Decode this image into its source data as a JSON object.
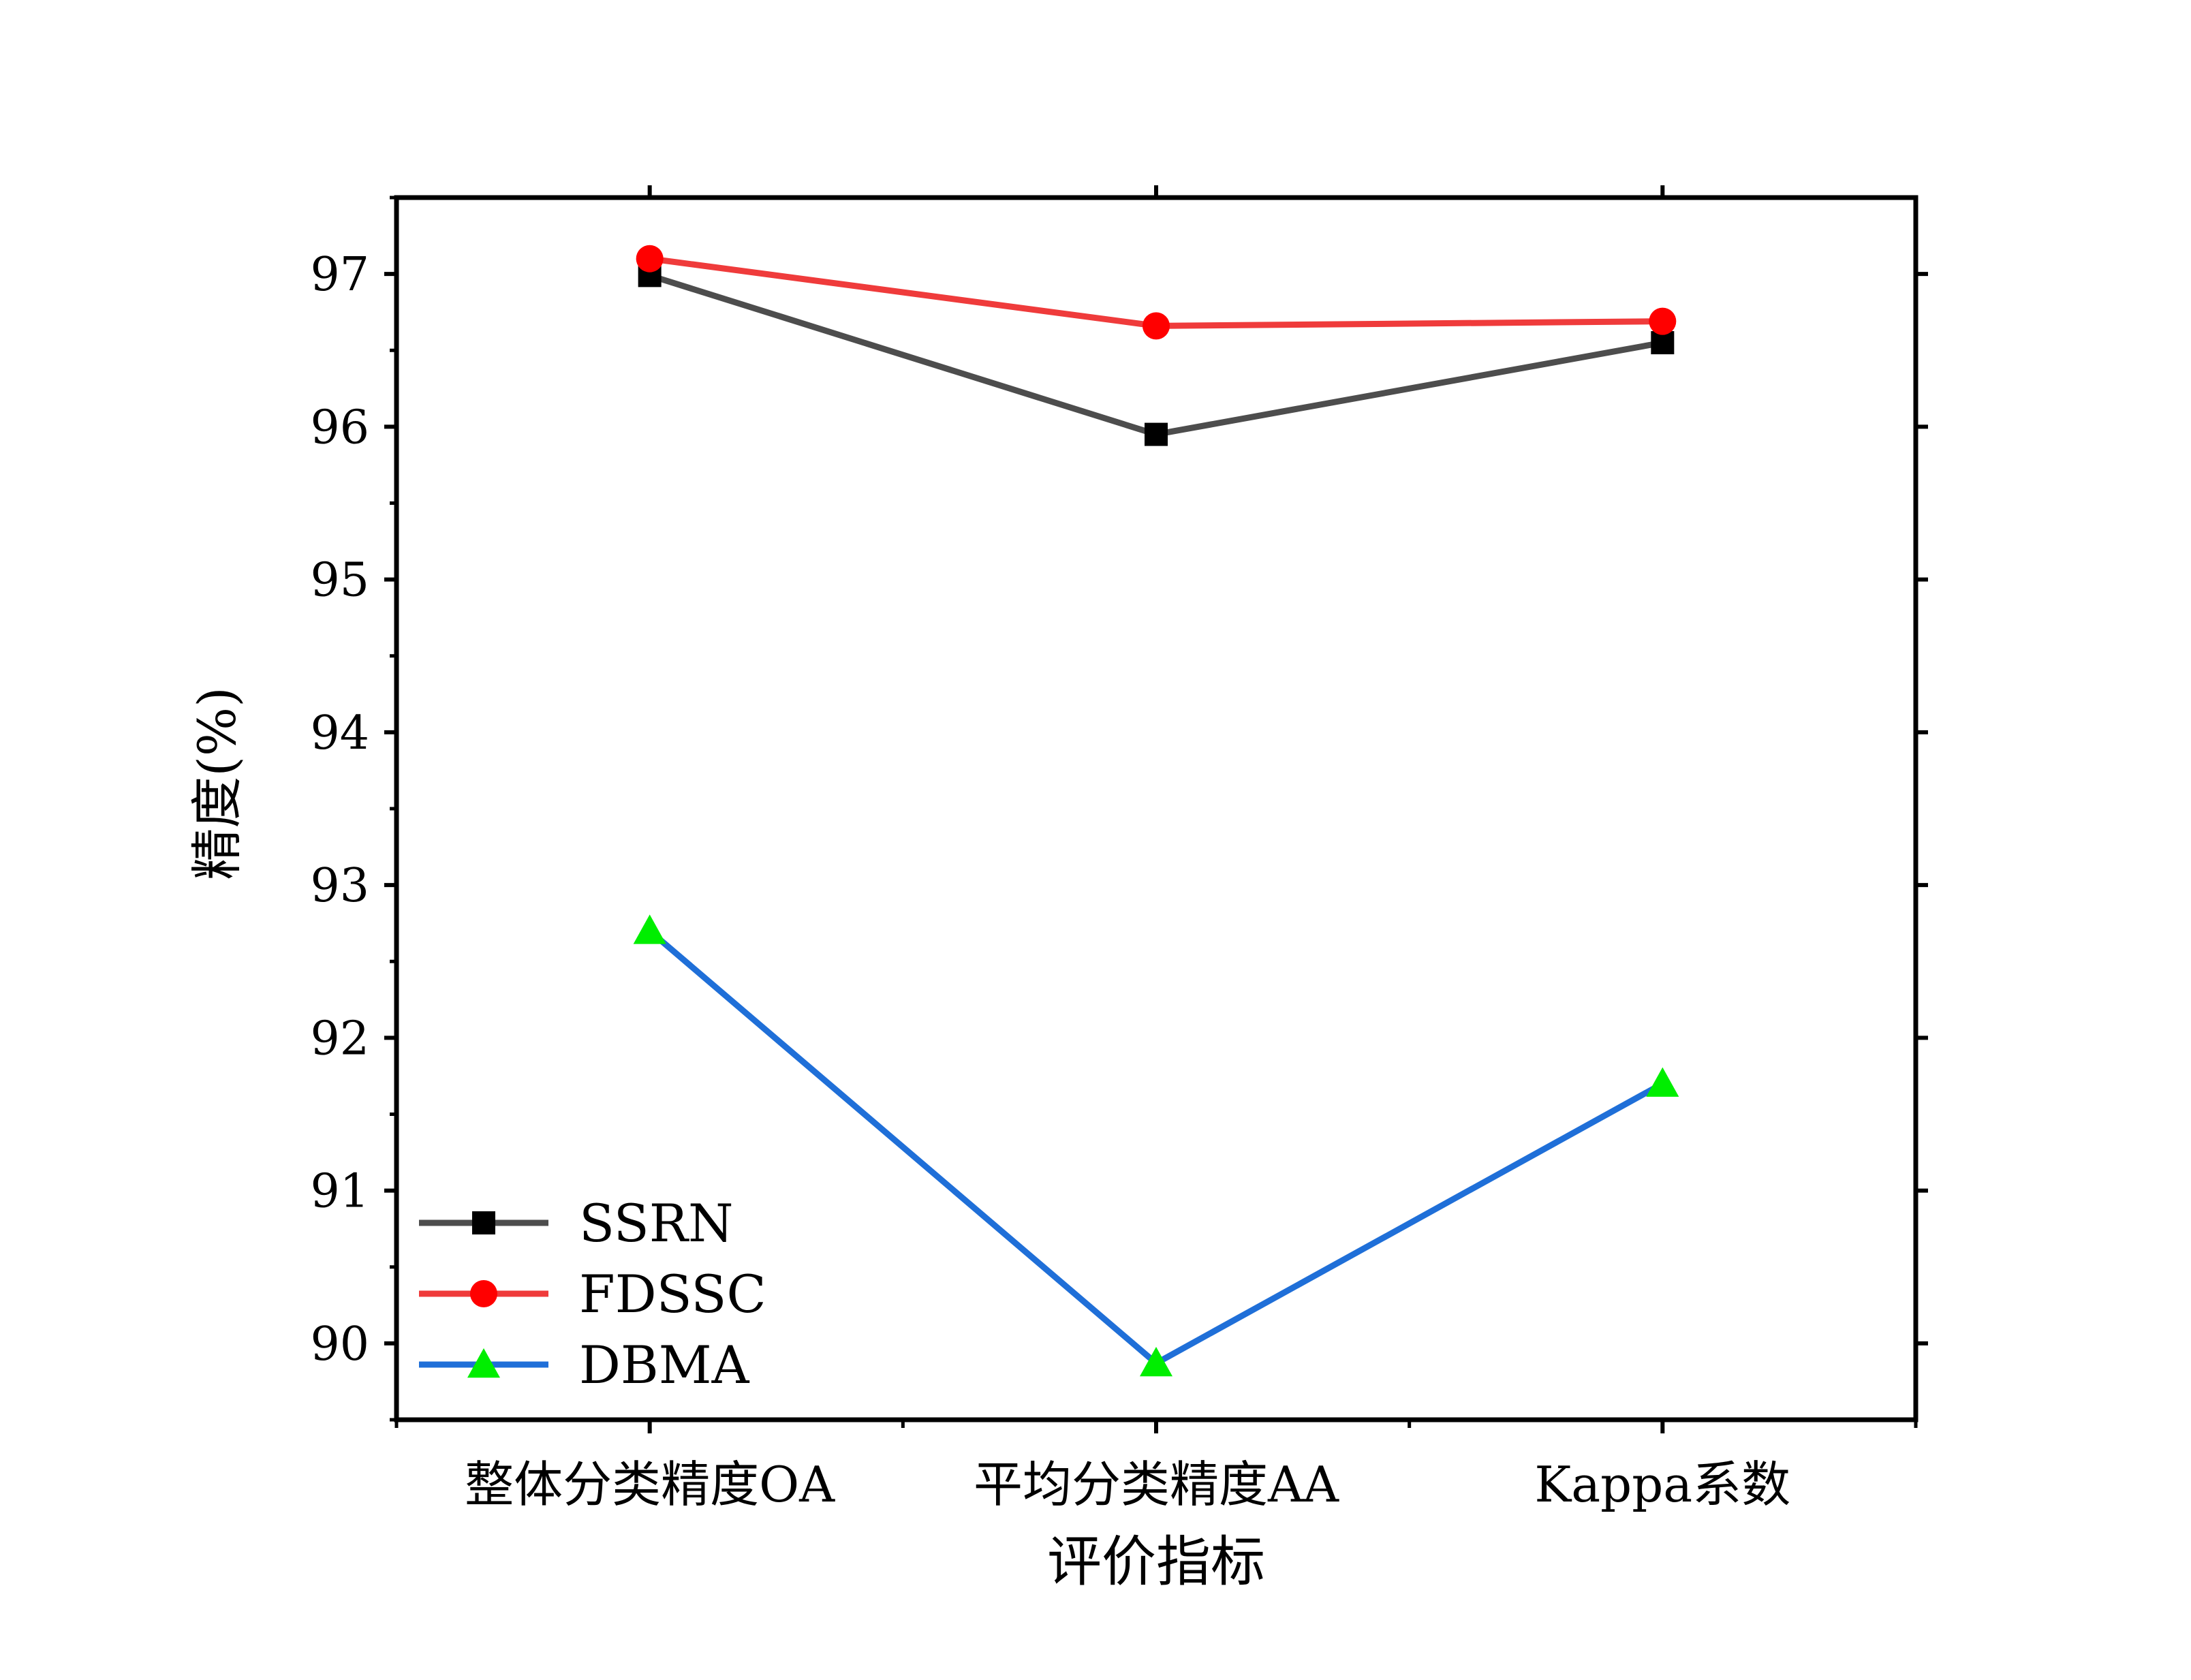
{
  "chart_data": {
    "type": "line",
    "title": "",
    "xlabel": "评价指标",
    "ylabel": "精度(%)",
    "categories": [
      "整体分类精度OA",
      "平均分类精度AA",
      "Kappa系数"
    ],
    "ylim": [
      89.5,
      97.5
    ],
    "yticks": [
      "90",
      "91",
      "92",
      "93",
      "94",
      "95",
      "96",
      "97"
    ],
    "grid": false,
    "legend_position": "bottom-left",
    "series": [
      {
        "name": "SSRN",
        "values": [
          96.99,
          95.95,
          96.55
        ],
        "color": "#4d4d4d",
        "marker": "square",
        "marker_color": "#000000"
      },
      {
        "name": "FDSSC",
        "values": [
          97.1,
          96.66,
          96.69
        ],
        "color": "#ef3b3b",
        "marker": "circle",
        "marker_color": "#ff0000"
      },
      {
        "name": "DBMA",
        "values": [
          92.7,
          89.87,
          91.7
        ],
        "color": "#1f6fd8",
        "marker": "triangle",
        "marker_color": "#00ee00"
      }
    ]
  }
}
